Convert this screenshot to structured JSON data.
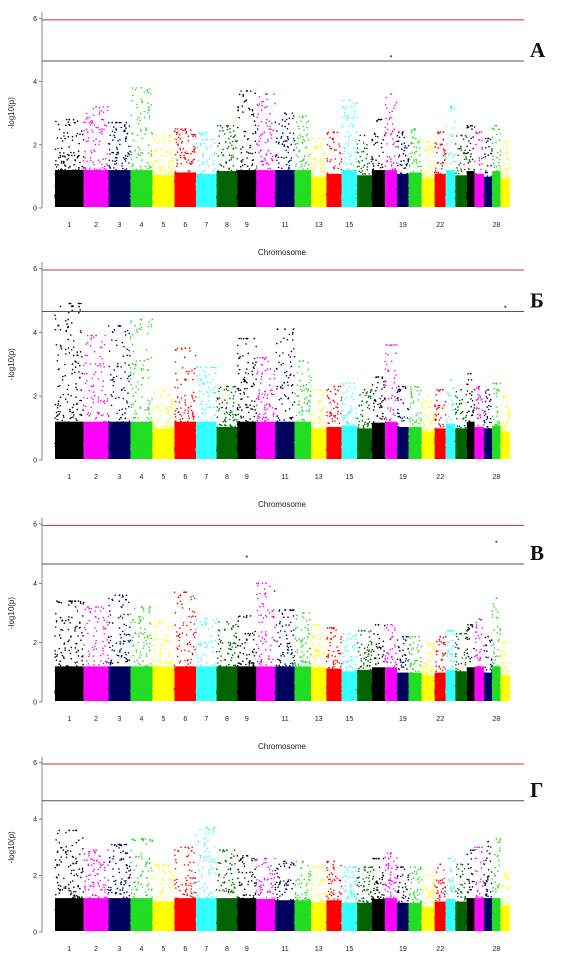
{
  "figure": {
    "panels": [
      "A",
      "Б",
      "В",
      "Г"
    ]
  },
  "chart_data": [
    {
      "panel": "A",
      "type": "scatter",
      "subtype": "manhattan",
      "xlabel": "Chromosome",
      "ylabel": "-log10(p)",
      "ylim": [
        0,
        6.2
      ],
      "yticks": [
        0,
        2,
        4,
        6
      ],
      "thresholds": [
        {
          "value": 5.95,
          "color": "#cc3333"
        },
        {
          "value": 4.65,
          "color": "#555555"
        }
      ],
      "chromosome_tick_labels": [
        "1",
        "2",
        "3",
        "4",
        "5",
        "6",
        "7",
        "8",
        "9",
        "11",
        "13",
        "15",
        "19",
        "22",
        "28"
      ],
      "chromosomes": [
        {
          "name": "1",
          "color": "#000000",
          "max": 2.8
        },
        {
          "name": "2",
          "color": "#ff00ff",
          "max": 3.2
        },
        {
          "name": "3",
          "color": "#00005f",
          "max": 2.7
        },
        {
          "name": "4",
          "color": "#22dd22",
          "max": 3.8
        },
        {
          "name": "5",
          "color": "#ffff00",
          "max": 2.3
        },
        {
          "name": "6",
          "color": "#ff0000",
          "max": 2.5
        },
        {
          "name": "7",
          "color": "#33ffff",
          "max": 2.4
        },
        {
          "name": "8",
          "color": "#006400",
          "max": 2.6
        },
        {
          "name": "9",
          "color": "#000000",
          "max": 3.7
        },
        {
          "name": "10",
          "color": "#ff00ff",
          "max": 3.6
        },
        {
          "name": "11",
          "color": "#00005f",
          "max": 3.0
        },
        {
          "name": "12",
          "color": "#22dd22",
          "max": 2.9
        },
        {
          "name": "13",
          "color": "#ffff00",
          "max": 2.2
        },
        {
          "name": "14",
          "color": "#ff0000",
          "max": 2.4
        },
        {
          "name": "15",
          "color": "#33ffff",
          "max": 3.4
        },
        {
          "name": "16",
          "color": "#006400",
          "max": 2.3
        },
        {
          "name": "17",
          "color": "#000000",
          "max": 2.8
        },
        {
          "name": "18",
          "color": "#ff00ff",
          "max": 3.6
        },
        {
          "name": "19",
          "color": "#00005f",
          "max": 2.4
        },
        {
          "name": "20",
          "color": "#22dd22",
          "max": 2.5
        },
        {
          "name": "21",
          "color": "#ffff00",
          "max": 2.1
        },
        {
          "name": "22",
          "color": "#ff0000",
          "max": 2.4
        },
        {
          "name": "23",
          "color": "#33ffff",
          "max": 3.2
        },
        {
          "name": "24",
          "color": "#006400",
          "max": 2.3
        },
        {
          "name": "25",
          "color": "#000000",
          "max": 2.6
        },
        {
          "name": "26",
          "color": "#ff00ff",
          "max": 2.4
        },
        {
          "name": "27",
          "color": "#00005f",
          "max": 2.2
        },
        {
          "name": "28",
          "color": "#22dd22",
          "max": 2.6
        },
        {
          "name": "29",
          "color": "#ffff00",
          "max": 2.1
        }
      ],
      "highlighted_points": [
        {
          "chromosome": "18",
          "y": 4.8
        }
      ]
    },
    {
      "panel": "Б",
      "type": "scatter",
      "subtype": "manhattan",
      "xlabel": "Chromosome",
      "ylabel": "-log10(p)",
      "ylim": [
        0,
        6.2
      ],
      "yticks": [
        0,
        2,
        4,
        6
      ],
      "thresholds": [
        {
          "value": 5.95,
          "color": "#cc3333"
        },
        {
          "value": 4.65,
          "color": "#555555"
        }
      ],
      "chromosome_tick_labels": [
        "1",
        "2",
        "3",
        "4",
        "5",
        "6",
        "7",
        "8",
        "9",
        "11",
        "13",
        "15",
        "19",
        "22",
        "28"
      ],
      "chromosomes": [
        {
          "name": "1",
          "color": "#000000",
          "max": 4.9
        },
        {
          "name": "2",
          "color": "#ff00ff",
          "max": 3.9
        },
        {
          "name": "3",
          "color": "#00005f",
          "max": 4.2
        },
        {
          "name": "4",
          "color": "#22dd22",
          "max": 4.4
        },
        {
          "name": "5",
          "color": "#ffff00",
          "max": 2.2
        },
        {
          "name": "6",
          "color": "#ff0000",
          "max": 3.5
        },
        {
          "name": "7",
          "color": "#33ffff",
          "max": 2.9
        },
        {
          "name": "8",
          "color": "#006400",
          "max": 2.3
        },
        {
          "name": "9",
          "color": "#000000",
          "max": 3.8
        },
        {
          "name": "10",
          "color": "#ff00ff",
          "max": 3.2
        },
        {
          "name": "11",
          "color": "#00005f",
          "max": 4.1
        },
        {
          "name": "12",
          "color": "#22dd22",
          "max": 3.1
        },
        {
          "name": "13",
          "color": "#ffff00",
          "max": 2.2
        },
        {
          "name": "14",
          "color": "#ff0000",
          "max": 2.3
        },
        {
          "name": "15",
          "color": "#33ffff",
          "max": 2.4
        },
        {
          "name": "16",
          "color": "#006400",
          "max": 2.2
        },
        {
          "name": "17",
          "color": "#000000",
          "max": 2.6
        },
        {
          "name": "18",
          "color": "#ff00ff",
          "max": 3.6
        },
        {
          "name": "19",
          "color": "#00005f",
          "max": 2.3
        },
        {
          "name": "20",
          "color": "#22dd22",
          "max": 2.3
        },
        {
          "name": "21",
          "color": "#ffff00",
          "max": 2.0
        },
        {
          "name": "22",
          "color": "#ff0000",
          "max": 2.2
        },
        {
          "name": "23",
          "color": "#33ffff",
          "max": 2.5
        },
        {
          "name": "24",
          "color": "#006400",
          "max": 2.2
        },
        {
          "name": "25",
          "color": "#000000",
          "max": 2.7
        },
        {
          "name": "26",
          "color": "#ff00ff",
          "max": 2.3
        },
        {
          "name": "27",
          "color": "#00005f",
          "max": 2.2
        },
        {
          "name": "28",
          "color": "#22dd22",
          "max": 2.4
        },
        {
          "name": "29",
          "color": "#ffff00",
          "max": 2.0
        }
      ],
      "highlighted_points": [
        {
          "chromosome": "29",
          "y": 4.8
        }
      ]
    },
    {
      "panel": "В",
      "type": "scatter",
      "subtype": "manhattan",
      "xlabel": "Chromosome",
      "ylabel": "-log10(p)",
      "ylim": [
        0,
        6.2
      ],
      "yticks": [
        0,
        2,
        4,
        6
      ],
      "thresholds": [
        {
          "value": 5.95,
          "color": "#cc3333"
        },
        {
          "value": 4.65,
          "color": "#555555"
        }
      ],
      "chromosome_tick_labels": [
        "1",
        "2",
        "3",
        "4",
        "5",
        "6",
        "7",
        "8",
        "9",
        "11",
        "13",
        "15",
        "19",
        "22",
        "28"
      ],
      "chromosomes": [
        {
          "name": "1",
          "color": "#000000",
          "max": 3.4
        },
        {
          "name": "2",
          "color": "#ff00ff",
          "max": 3.2
        },
        {
          "name": "3",
          "color": "#00005f",
          "max": 3.6
        },
        {
          "name": "4",
          "color": "#22dd22",
          "max": 3.2
        },
        {
          "name": "5",
          "color": "#ffff00",
          "max": 2.7
        },
        {
          "name": "6",
          "color": "#ff0000",
          "max": 3.7
        },
        {
          "name": "7",
          "color": "#33ffff",
          "max": 2.8
        },
        {
          "name": "8",
          "color": "#006400",
          "max": 2.7
        },
        {
          "name": "9",
          "color": "#000000",
          "max": 2.9
        },
        {
          "name": "10",
          "color": "#ff00ff",
          "max": 4.0
        },
        {
          "name": "11",
          "color": "#00005f",
          "max": 3.1
        },
        {
          "name": "12",
          "color": "#22dd22",
          "max": 3.0
        },
        {
          "name": "13",
          "color": "#ffff00",
          "max": 2.6
        },
        {
          "name": "14",
          "color": "#ff0000",
          "max": 2.5
        },
        {
          "name": "15",
          "color": "#33ffff",
          "max": 2.3
        },
        {
          "name": "16",
          "color": "#006400",
          "max": 2.4
        },
        {
          "name": "17",
          "color": "#000000",
          "max": 2.6
        },
        {
          "name": "18",
          "color": "#ff00ff",
          "max": 2.6
        },
        {
          "name": "19",
          "color": "#00005f",
          "max": 2.2
        },
        {
          "name": "20",
          "color": "#22dd22",
          "max": 2.2
        },
        {
          "name": "21",
          "color": "#ffff00",
          "max": 2.0
        },
        {
          "name": "22",
          "color": "#ff0000",
          "max": 2.2
        },
        {
          "name": "23",
          "color": "#33ffff",
          "max": 2.4
        },
        {
          "name": "24",
          "color": "#006400",
          "max": 2.3
        },
        {
          "name": "25",
          "color": "#000000",
          "max": 2.6
        },
        {
          "name": "26",
          "color": "#ff00ff",
          "max": 2.8
        },
        {
          "name": "27",
          "color": "#00005f",
          "max": 2.2
        },
        {
          "name": "28",
          "color": "#22dd22",
          "max": 3.5
        },
        {
          "name": "29",
          "color": "#ffff00",
          "max": 2.0
        }
      ],
      "highlighted_points": [
        {
          "chromosome": "9",
          "y": 4.9
        },
        {
          "chromosome": "28",
          "y": 5.4
        }
      ]
    },
    {
      "panel": "Г",
      "type": "scatter",
      "subtype": "manhattan",
      "xlabel": "",
      "ylabel": "-log10(p)",
      "ylim": [
        0,
        6.2
      ],
      "yticks": [
        0,
        2,
        4,
        6
      ],
      "thresholds": [
        {
          "value": 5.95,
          "color": "#cc3333"
        },
        {
          "value": 4.65,
          "color": "#555555"
        }
      ],
      "chromosome_tick_labels": [
        "1",
        "2",
        "3",
        "4",
        "5",
        "6",
        "7",
        "8",
        "9",
        "11",
        "13",
        "15",
        "19",
        "22",
        "28"
      ],
      "chromosomes": [
        {
          "name": "1",
          "color": "#000000",
          "max": 3.6
        },
        {
          "name": "2",
          "color": "#ff00ff",
          "max": 2.9
        },
        {
          "name": "3",
          "color": "#00005f",
          "max": 3.1
        },
        {
          "name": "4",
          "color": "#22dd22",
          "max": 3.3
        },
        {
          "name": "5",
          "color": "#ffff00",
          "max": 2.4
        },
        {
          "name": "6",
          "color": "#ff0000",
          "max": 3.0
        },
        {
          "name": "7",
          "color": "#33ffff",
          "max": 3.7
        },
        {
          "name": "8",
          "color": "#006400",
          "max": 2.9
        },
        {
          "name": "9",
          "color": "#000000",
          "max": 2.7
        },
        {
          "name": "10",
          "color": "#ff00ff",
          "max": 2.6
        },
        {
          "name": "11",
          "color": "#00005f",
          "max": 2.5
        },
        {
          "name": "12",
          "color": "#22dd22",
          "max": 2.5
        },
        {
          "name": "13",
          "color": "#ffff00",
          "max": 2.3
        },
        {
          "name": "14",
          "color": "#ff0000",
          "max": 2.5
        },
        {
          "name": "15",
          "color": "#33ffff",
          "max": 2.3
        },
        {
          "name": "16",
          "color": "#006400",
          "max": 2.3
        },
        {
          "name": "17",
          "color": "#000000",
          "max": 2.6
        },
        {
          "name": "18",
          "color": "#ff00ff",
          "max": 2.8
        },
        {
          "name": "19",
          "color": "#00005f",
          "max": 2.3
        },
        {
          "name": "20",
          "color": "#22dd22",
          "max": 2.3
        },
        {
          "name": "21",
          "color": "#ffff00",
          "max": 2.0
        },
        {
          "name": "22",
          "color": "#ff0000",
          "max": 2.4
        },
        {
          "name": "23",
          "color": "#33ffff",
          "max": 2.6
        },
        {
          "name": "24",
          "color": "#006400",
          "max": 2.4
        },
        {
          "name": "25",
          "color": "#000000",
          "max": 2.9
        },
        {
          "name": "26",
          "color": "#ff00ff",
          "max": 3.0
        },
        {
          "name": "27",
          "color": "#00005f",
          "max": 3.2
        },
        {
          "name": "28",
          "color": "#22dd22",
          "max": 3.3
        },
        {
          "name": "29",
          "color": "#ffff00",
          "max": 2.1
        }
      ],
      "highlighted_points": []
    }
  ]
}
